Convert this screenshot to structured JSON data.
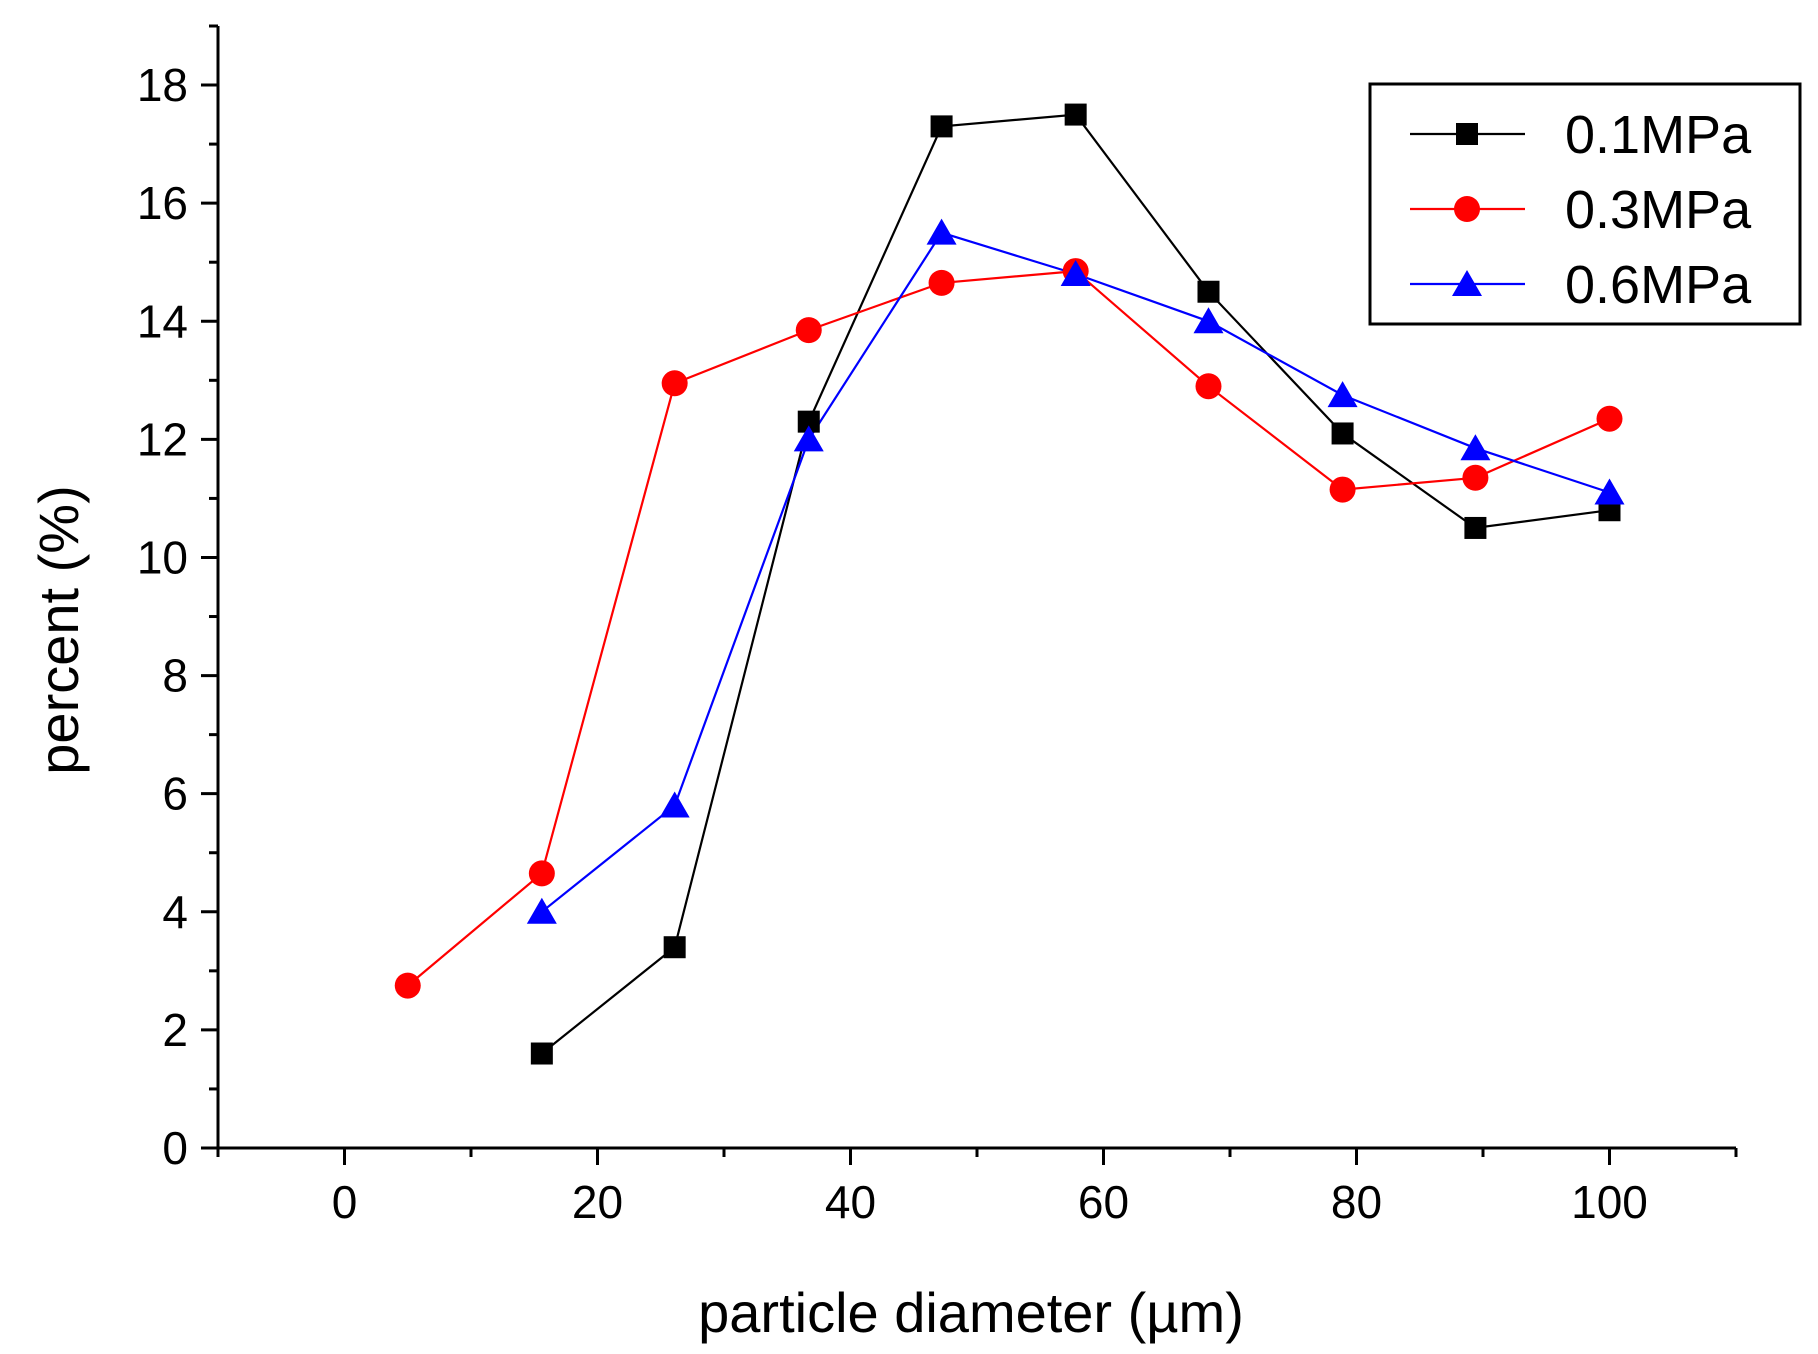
{
  "chart_data": {
    "type": "line",
    "title": "",
    "xlabel": "particle diameter (µm)",
    "ylabel": "percent (%)",
    "xlim": [
      -10,
      110
    ],
    "ylim": [
      0,
      19
    ],
    "xticks": [
      0,
      20,
      40,
      60,
      80,
      100
    ],
    "yticks": [
      0,
      2,
      4,
      6,
      8,
      10,
      12,
      14,
      16,
      18
    ],
    "x_minor_step": 10,
    "y_minor_step": 1,
    "grid": false,
    "legend_position": "top-right",
    "series": [
      {
        "name": "0.1MPa",
        "color": "#000000",
        "marker": "square",
        "x": [
          15.6,
          26.1,
          36.7,
          47.2,
          57.8,
          68.3,
          78.9,
          89.4,
          100
        ],
        "y": [
          1.6,
          3.4,
          12.3,
          17.3,
          17.5,
          14.5,
          12.1,
          10.5,
          10.8
        ]
      },
      {
        "name": "0.3MPa",
        "color": "#ff0000",
        "marker": "circle",
        "x": [
          5,
          15.6,
          26.1,
          36.7,
          47.2,
          57.8,
          68.3,
          78.9,
          89.4,
          100
        ],
        "y": [
          2.75,
          4.65,
          12.95,
          13.85,
          14.65,
          14.85,
          12.9,
          11.15,
          11.35,
          12.35
        ]
      },
      {
        "name": "0.6MPa",
        "color": "#0000ff",
        "marker": "triangle",
        "x": [
          15.6,
          26.1,
          36.7,
          47.2,
          57.8,
          68.3,
          78.9,
          89.4,
          100
        ],
        "y": [
          4.0,
          5.8,
          12.0,
          15.5,
          14.8,
          14.0,
          12.75,
          11.85,
          11.1
        ]
      }
    ]
  }
}
